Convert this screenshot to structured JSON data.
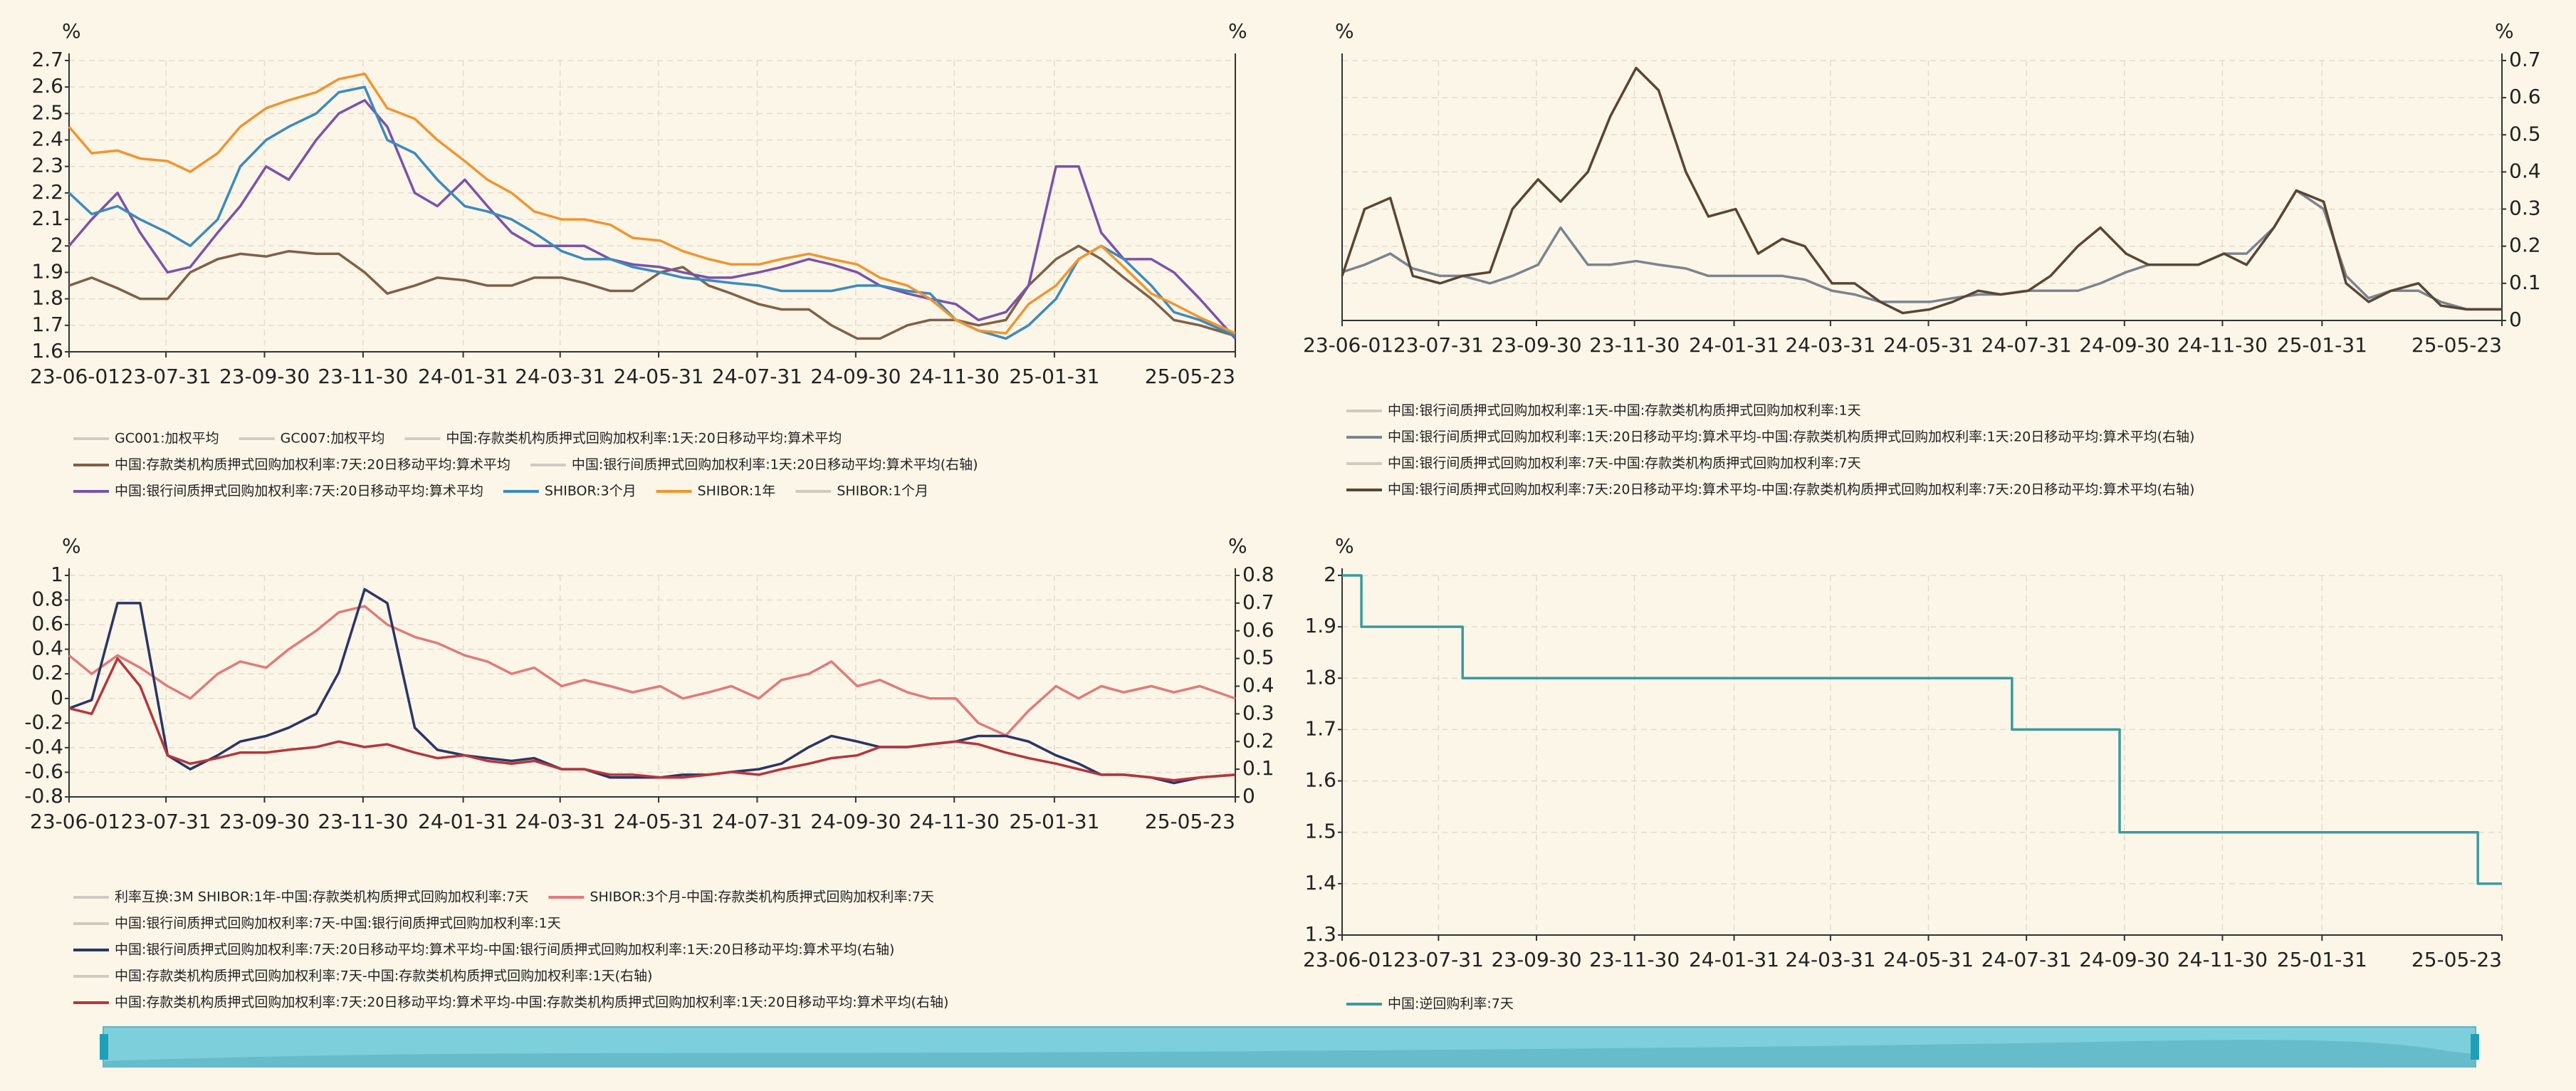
{
  "chart_data": [
    {
      "type": "line",
      "ylabel": "%",
      "y2label": "%",
      "xlim": [
        "23-06-01",
        "25-05-23"
      ],
      "xticks": [
        "23-06-01",
        "23-07-31",
        "23-09-30",
        "23-11-30",
        "24-01-31",
        "24-03-31",
        "24-05-31",
        "24-07-31",
        "24-09-30",
        "24-11-30",
        "25-01-31",
        "25-05-23"
      ],
      "ylim": [
        1.6,
        2.7
      ],
      "yticks": [
        1.6,
        1.7,
        1.8,
        1.9,
        2,
        2.1,
        2.2,
        2.3,
        2.4,
        2.5,
        2.6,
        2.7
      ],
      "grid": true,
      "x": [
        "23-06-01",
        "23-06-15",
        "23-07-01",
        "23-07-15",
        "23-08-01",
        "23-08-15",
        "23-09-01",
        "23-09-15",
        "23-10-01",
        "23-10-15",
        "23-11-01",
        "23-11-15",
        "23-12-01",
        "23-12-15",
        "24-01-01",
        "24-01-15",
        "24-02-01",
        "24-02-15",
        "24-03-01",
        "24-03-15",
        "24-04-01",
        "24-04-15",
        "24-05-01",
        "24-05-15",
        "24-06-01",
        "24-06-15",
        "24-07-01",
        "24-07-15",
        "24-08-01",
        "24-08-15",
        "24-09-01",
        "24-09-15",
        "24-10-01",
        "24-10-15",
        "24-11-01",
        "24-11-15",
        "24-12-01",
        "24-12-15",
        "25-01-01",
        "25-01-15",
        "25-02-01",
        "25-02-15",
        "25-03-01",
        "25-03-15",
        "25-04-01",
        "25-04-15",
        "25-05-01",
        "25-05-23"
      ],
      "series": [
        {
          "name": "GC001:加权平均",
          "visible": false
        },
        {
          "name": "GC007:加权平均",
          "visible": false
        },
        {
          "name": "中国:存款类机构质押式回购加权利率:1天:20日移动平均:算术平均",
          "visible": false
        },
        {
          "name": "中国:存款类机构质押式回购加权利率:7天:20日移动平均:算术平均",
          "color": "#7f6049",
          "values": [
            1.85,
            1.88,
            1.84,
            1.8,
            1.8,
            1.9,
            1.95,
            1.97,
            1.96,
            1.98,
            1.97,
            1.97,
            1.9,
            1.82,
            1.85,
            1.88,
            1.87,
            1.85,
            1.85,
            1.88,
            1.88,
            1.86,
            1.83,
            1.83,
            1.9,
            1.92,
            1.85,
            1.82,
            1.78,
            1.76,
            1.76,
            1.7,
            1.65,
            1.65,
            1.7,
            1.72,
            1.72,
            1.7,
            1.72,
            1.85,
            1.95,
            2.0,
            1.95,
            1.88,
            1.8,
            1.72,
            1.7,
            1.66
          ]
        },
        {
          "name": "中国:银行间质押式回购加权利率:1天:20日移动平均:算术平均(右轴)",
          "visible": false
        },
        {
          "name": "中国:银行间质押式回购加权利率:7天:20日移动平均:算术平均",
          "color": "#7b52ab",
          "values": [
            2.0,
            2.1,
            2.2,
            2.05,
            1.9,
            1.92,
            2.05,
            2.15,
            2.3,
            2.25,
            2.4,
            2.5,
            2.55,
            2.45,
            2.2,
            2.15,
            2.25,
            2.15,
            2.05,
            2.0,
            2.0,
            2.0,
            1.95,
            1.93,
            1.92,
            1.9,
            1.88,
            1.88,
            1.9,
            1.92,
            1.95,
            1.93,
            1.9,
            1.85,
            1.82,
            1.8,
            1.78,
            1.72,
            1.75,
            1.85,
            2.3,
            2.3,
            2.05,
            1.95,
            1.95,
            1.9,
            1.8,
            1.65
          ]
        },
        {
          "name": "SHIBOR:3个月",
          "color": "#3a8bbf",
          "values": [
            2.2,
            2.12,
            2.15,
            2.1,
            2.05,
            2.0,
            2.1,
            2.3,
            2.4,
            2.45,
            2.5,
            2.58,
            2.6,
            2.4,
            2.35,
            2.25,
            2.15,
            2.13,
            2.1,
            2.05,
            1.98,
            1.95,
            1.95,
            1.92,
            1.9,
            1.88,
            1.87,
            1.86,
            1.85,
            1.83,
            1.83,
            1.83,
            1.85,
            1.85,
            1.83,
            1.82,
            1.72,
            1.68,
            1.65,
            1.7,
            1.8,
            1.95,
            2.0,
            1.95,
            1.85,
            1.75,
            1.72,
            1.66
          ]
        },
        {
          "name": "SHIBOR:1年",
          "color": "#f0952f",
          "values": [
            2.45,
            2.35,
            2.36,
            2.33,
            2.32,
            2.28,
            2.35,
            2.45,
            2.52,
            2.55,
            2.58,
            2.63,
            2.65,
            2.52,
            2.48,
            2.4,
            2.32,
            2.25,
            2.2,
            2.13,
            2.1,
            2.1,
            2.08,
            2.03,
            2.02,
            1.98,
            1.95,
            1.93,
            1.93,
            1.95,
            1.97,
            1.95,
            1.93,
            1.88,
            1.85,
            1.8,
            1.72,
            1.68,
            1.67,
            1.78,
            1.85,
            1.95,
            2.0,
            1.92,
            1.82,
            1.78,
            1.73,
            1.67
          ]
        },
        {
          "name": "SHIBOR:1个月",
          "visible": false
        }
      ]
    },
    {
      "type": "line",
      "ylabel": "%",
      "y2label": "%",
      "xlim": [
        "23-06-01",
        "25-05-23"
      ],
      "xticks": [
        "23-06-01",
        "23-07-31",
        "23-09-30",
        "23-11-30",
        "24-01-31",
        "24-03-31",
        "24-05-31",
        "24-07-31",
        "24-09-30",
        "24-11-30",
        "25-01-31",
        "25-05-23"
      ],
      "y2lim": [
        0,
        0.7
      ],
      "y2ticks": [
        0,
        0.1,
        0.2,
        0.3,
        0.4,
        0.5,
        0.6,
        0.7
      ],
      "grid": true,
      "x": [
        "23-06-01",
        "23-06-15",
        "23-07-01",
        "23-07-15",
        "23-08-01",
        "23-08-15",
        "23-09-01",
        "23-09-15",
        "23-10-01",
        "23-10-15",
        "23-11-01",
        "23-11-15",
        "23-12-01",
        "23-12-15",
        "24-01-01",
        "24-01-15",
        "24-02-01",
        "24-02-15",
        "24-03-01",
        "24-03-15",
        "24-04-01",
        "24-04-15",
        "24-05-01",
        "24-05-15",
        "24-06-01",
        "24-06-15",
        "24-07-01",
        "24-07-15",
        "24-08-01",
        "24-08-15",
        "24-09-01",
        "24-09-15",
        "24-10-01",
        "24-10-15",
        "24-11-01",
        "24-11-15",
        "24-12-01",
        "24-12-15",
        "25-01-01",
        "25-01-15",
        "25-02-01",
        "25-02-15",
        "25-03-01",
        "25-03-15",
        "25-04-01",
        "25-04-15",
        "25-05-01",
        "25-05-23"
      ],
      "series": [
        {
          "name": "中国:银行间质押式回购加权利率:1天-中国:存款类机构质押式回购加权利率:1天",
          "visible": false
        },
        {
          "name": "中国:银行间质押式回购加权利率:1天:20日移动平均:算术平均-中国:存款类机构质押式回购加权利率:1天:20日移动平均:算术平均(右轴)",
          "color": "#7b8490",
          "axis": "y2",
          "values": [
            0.13,
            0.15,
            0.18,
            0.14,
            0.12,
            0.12,
            0.1,
            0.12,
            0.15,
            0.25,
            0.15,
            0.15,
            0.16,
            0.15,
            0.14,
            0.12,
            0.12,
            0.12,
            0.12,
            0.11,
            0.08,
            0.07,
            0.05,
            0.05,
            0.05,
            0.06,
            0.07,
            0.07,
            0.08,
            0.08,
            0.08,
            0.1,
            0.13,
            0.15,
            0.15,
            0.15,
            0.18,
            0.18,
            0.25,
            0.35,
            0.3,
            0.12,
            0.06,
            0.08,
            0.08,
            0.05,
            0.03,
            0.03
          ]
        },
        {
          "name": "中国:银行间质押式回购加权利率:7天-中国:存款类机构质押式回购加权利率:7天",
          "visible": false
        },
        {
          "name": "中国:银行间质押式回购加权利率:7天:20日移动平均:算术平均-中国:存款类机构质押式回购加权利率:7天:20日移动平均:算术平均(右轴)",
          "color": "#5a4535",
          "axis": "y2",
          "values": [
            0.12,
            0.3,
            0.33,
            0.12,
            0.1,
            0.12,
            0.13,
            0.3,
            0.38,
            0.32,
            0.4,
            0.55,
            0.68,
            0.62,
            0.4,
            0.28,
            0.3,
            0.18,
            0.22,
            0.2,
            0.1,
            0.1,
            0.05,
            0.02,
            0.03,
            0.05,
            0.08,
            0.07,
            0.08,
            0.12,
            0.2,
            0.25,
            0.18,
            0.15,
            0.15,
            0.15,
            0.18,
            0.15,
            0.25,
            0.35,
            0.32,
            0.1,
            0.05,
            0.08,
            0.1,
            0.04,
            0.03,
            0.03
          ]
        }
      ]
    },
    {
      "type": "line",
      "ylabel": "%",
      "y2label": "%",
      "xlim": [
        "23-06-01",
        "25-05-23"
      ],
      "xticks": [
        "23-06-01",
        "23-07-31",
        "23-09-30",
        "23-11-30",
        "24-01-31",
        "24-03-31",
        "24-05-31",
        "24-07-31",
        "24-09-30",
        "24-11-30",
        "25-01-31",
        "25-05-23"
      ],
      "ylim": [
        -0.8,
        1
      ],
      "yticks": [
        -0.8,
        -0.6,
        -0.4,
        -0.2,
        0,
        0.2,
        0.4,
        0.6,
        0.8,
        1
      ],
      "y2lim": [
        0,
        0.8
      ],
      "y2ticks": [
        0,
        0.1,
        0.2,
        0.3,
        0.4,
        0.5,
        0.6,
        0.7,
        0.8
      ],
      "grid": true,
      "x": [
        "23-06-01",
        "23-06-15",
        "23-07-01",
        "23-07-15",
        "23-08-01",
        "23-08-15",
        "23-09-01",
        "23-09-15",
        "23-10-01",
        "23-10-15",
        "23-11-01",
        "23-11-15",
        "23-12-01",
        "23-12-15",
        "24-01-01",
        "24-01-15",
        "24-02-01",
        "24-02-15",
        "24-03-01",
        "24-03-15",
        "24-04-01",
        "24-04-15",
        "24-05-01",
        "24-05-15",
        "24-06-01",
        "24-06-15",
        "24-07-01",
        "24-07-15",
        "24-08-01",
        "24-08-15",
        "24-09-01",
        "24-09-15",
        "24-10-01",
        "24-10-15",
        "24-11-01",
        "24-11-15",
        "24-12-01",
        "24-12-15",
        "25-01-01",
        "25-01-15",
        "25-02-01",
        "25-02-15",
        "25-03-01",
        "25-03-15",
        "25-04-01",
        "25-04-15",
        "25-05-01",
        "25-05-23"
      ],
      "series": [
        {
          "name": "利率互换:3M SHIBOR:1年-中国:存款类机构质押式回购加权利率:7天",
          "visible": false
        },
        {
          "name": "SHIBOR:3个月-中国:存款类机构质押式回购加权利率:7天",
          "color": "#e07b7b",
          "values": [
            0.35,
            0.2,
            0.35,
            0.25,
            0.1,
            0.0,
            0.2,
            0.3,
            0.25,
            0.4,
            0.55,
            0.7,
            0.75,
            0.6,
            0.5,
            0.45,
            0.35,
            0.3,
            0.2,
            0.25,
            0.1,
            0.15,
            0.1,
            0.05,
            0.1,
            0.0,
            0.05,
            0.1,
            0.0,
            0.15,
            0.2,
            0.3,
            0.1,
            0.15,
            0.05,
            0.0,
            0.0,
            -0.2,
            -0.3,
            -0.1,
            0.1,
            0.0,
            0.1,
            0.05,
            0.1,
            0.05,
            0.1,
            0.0
          ]
        },
        {
          "name": "中国:银行间质押式回购加权利率:7天-中国:银行间质押式回购加权利率:1天",
          "visible": false
        },
        {
          "name": "中国:银行间质押式回购加权利率:7天:20日移动平均:算术平均-中国:银行间质押式回购加权利率:1天:20日移动平均:算术平均(右轴)",
          "color": "#2b3566",
          "axis": "y2",
          "values": [
            0.32,
            0.35,
            0.7,
            0.7,
            0.15,
            0.1,
            0.15,
            0.2,
            0.22,
            0.25,
            0.3,
            0.45,
            0.75,
            0.7,
            0.25,
            0.17,
            0.15,
            0.14,
            0.13,
            0.14,
            0.1,
            0.1,
            0.07,
            0.07,
            0.07,
            0.08,
            0.08,
            0.09,
            0.1,
            0.12,
            0.18,
            0.22,
            0.2,
            0.18,
            0.18,
            0.19,
            0.2,
            0.22,
            0.22,
            0.2,
            0.15,
            0.12,
            0.08,
            0.08,
            0.07,
            0.05,
            0.07,
            0.08
          ]
        },
        {
          "name": "中国:存款类机构质押式回购加权利率:7天-中国:存款类机构质押式回购加权利率:1天(右轴)",
          "visible": false
        },
        {
          "name": "中国:存款类机构质押式回购加权利率:7天:20日移动平均:算术平均-中国:存款类机构质押式回购加权利率:1天:20日移动平均:算术平均(右轴)",
          "color": "#b5363e",
          "axis": "y2",
          "values": [
            0.32,
            0.3,
            0.5,
            0.4,
            0.15,
            0.12,
            0.14,
            0.16,
            0.16,
            0.17,
            0.18,
            0.2,
            0.18,
            0.19,
            0.16,
            0.14,
            0.15,
            0.13,
            0.12,
            0.13,
            0.1,
            0.1,
            0.08,
            0.08,
            0.07,
            0.07,
            0.08,
            0.09,
            0.08,
            0.1,
            0.12,
            0.14,
            0.15,
            0.18,
            0.18,
            0.19,
            0.2,
            0.19,
            0.16,
            0.14,
            0.12,
            0.1,
            0.08,
            0.08,
            0.07,
            0.06,
            0.07,
            0.08
          ]
        }
      ]
    },
    {
      "type": "step",
      "ylabel": "%",
      "xlim": [
        "23-06-01",
        "25-05-23"
      ],
      "xticks": [
        "23-06-01",
        "23-07-31",
        "23-09-30",
        "23-11-30",
        "24-01-31",
        "24-03-31",
        "24-05-31",
        "24-07-31",
        "24-09-30",
        "24-11-30",
        "25-01-31",
        "25-05-23"
      ],
      "ylim": [
        1.3,
        2
      ],
      "yticks": [
        1.3,
        1.4,
        1.5,
        1.6,
        1.7,
        1.8,
        1.9,
        2
      ],
      "grid": true,
      "x": [
        "23-06-01",
        "23-06-13",
        "23-08-15",
        "24-07-22",
        "24-09-27",
        "25-05-08",
        "25-05-23"
      ],
      "series": [
        {
          "name": "中国:逆回购利率:7天",
          "color": "#3a9aa0",
          "values": [
            2,
            1.9,
            1.8,
            1.7,
            1.5,
            1.4,
            1.4
          ]
        }
      ]
    }
  ]
}
